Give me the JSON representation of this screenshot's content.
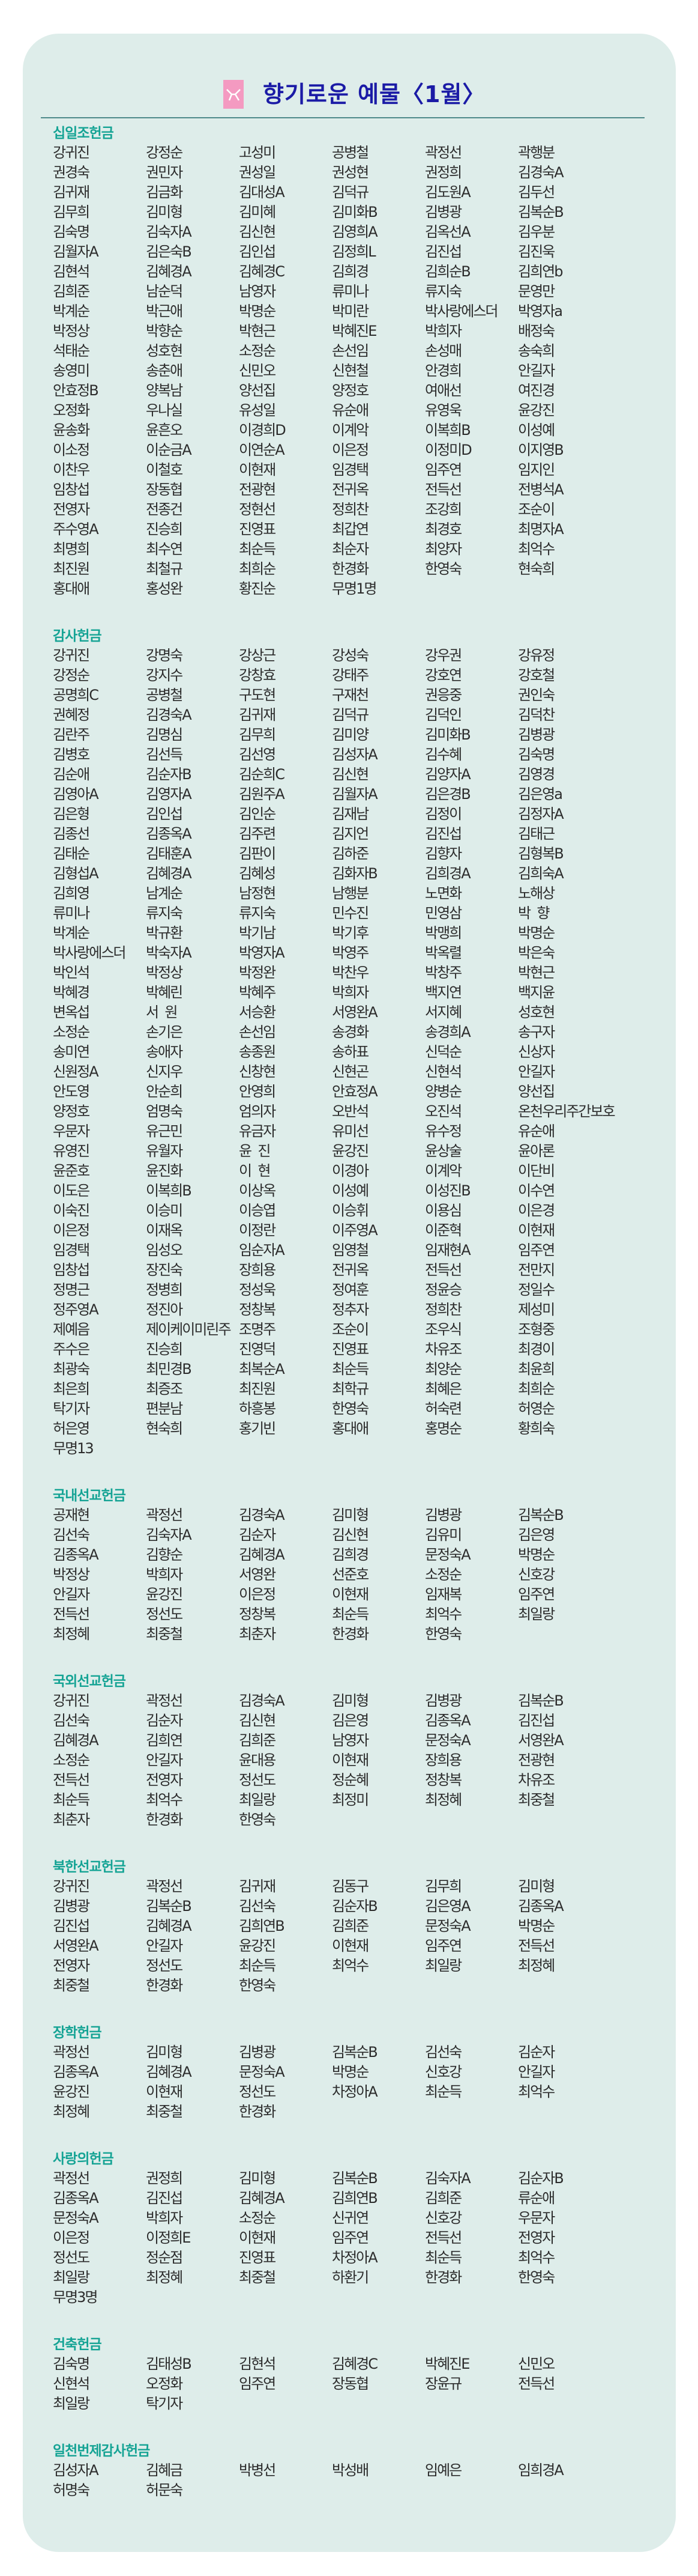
{
  "title": "향기로운 예물〈1월〉",
  "title_icon": "envelope-icon",
  "colors": {
    "title": "#1b1ba6",
    "section_title": "#14a394",
    "card_bg": "#deedea",
    "icon": "#f49ac1"
  },
  "sections": [
    {
      "title": "십일조헌금",
      "names": [
        "강귀진",
        "강정순",
        "고성미",
        "공병철",
        "곽정선",
        "곽행분",
        "권경숙",
        "권민자",
        "권성일",
        "권성현",
        "권정희",
        "김경숙A",
        "김귀재",
        "김금화",
        "김대성A",
        "김덕규",
        "김도원A",
        "김두선",
        "김무희",
        "김미형",
        "김미혜",
        "김미화B",
        "김병광",
        "김복순B",
        "김숙명",
        "김숙자A",
        "김신현",
        "김영희A",
        "김옥선A",
        "김우분",
        "김월자A",
        "김은숙B",
        "김인섭",
        "김정희L",
        "김진섭",
        "김진욱",
        "김현석",
        "김혜경A",
        "김혜경C",
        "김희경",
        "김희순B",
        "김희연b",
        "김희준",
        "남순덕",
        "남영자",
        "류미나",
        "류지숙",
        "문영만",
        "박계순",
        "박근애",
        "박명순",
        "박미란",
        "박사랑에스더",
        "박영자a",
        "박정상",
        "박향순",
        "박현근",
        "박혜진E",
        "박희자",
        "배정숙",
        "석태순",
        "성호현",
        "소정순",
        "손선임",
        "손성매",
        "송숙희",
        "송영미",
        "송춘애",
        "신민오",
        "신현철",
        "안경희",
        "안길자",
        "안효정B",
        "양복남",
        "양선집",
        "양정호",
        "여애선",
        "여진경",
        "오정화",
        "우나실",
        "유성일",
        "유순애",
        "유영욱",
        "윤강진",
        "윤송화",
        "윤흔오",
        "이경희D",
        "이계악",
        "이복희B",
        "이성예",
        "이소정",
        "이순금A",
        "이연순A",
        "이은정",
        "이정미D",
        "이지영B",
        "이찬우",
        "이철호",
        "이현재",
        "임경택",
        "임주연",
        "임지인",
        "임창섭",
        "장동협",
        "전광현",
        "전귀옥",
        "전득선",
        "전병석A",
        "전영자",
        "전종건",
        "정현선",
        "정희찬",
        "조강희",
        "조순이",
        "주수영A",
        "진승희",
        "진영표",
        "최갑연",
        "최경호",
        "최명자A",
        "최명희",
        "최수연",
        "최순득",
        "최순자",
        "최양자",
        "최억수",
        "최진원",
        "최철규",
        "최희순",
        "한경화",
        "한영숙",
        "현숙희",
        "홍대애",
        "홍성완",
        "황진순",
        "무명1명"
      ]
    },
    {
      "title": "감사헌금",
      "names": [
        "강귀진",
        "강명숙",
        "강상근",
        "강성숙",
        "강우권",
        "강유정",
        "강정순",
        "강지수",
        "강창효",
        "강태주",
        "강호연",
        "강호철",
        "공명희C",
        "공병철",
        "구도현",
        "구재천",
        "권응중",
        "권인숙",
        "권혜정",
        "김경숙A",
        "김귀재",
        "김덕규",
        "김덕인",
        "김덕찬",
        "김란주",
        "김명심",
        "김무희",
        "김미양",
        "김미화B",
        "김병광",
        "김병호",
        "김선득",
        "김선영",
        "김성자A",
        "김수혜",
        "김숙명",
        "김순애",
        "김순자B",
        "김순희C",
        "김신현",
        "김양자A",
        "김영경",
        "김영아A",
        "김영자A",
        "김원주A",
        "김월자A",
        "김은경B",
        "김은영a",
        "김은형",
        "김인섭",
        "김인순",
        "김재남",
        "김정이",
        "김정자A",
        "김종선",
        "김종옥A",
        "김주련",
        "김지언",
        "김진섭",
        "김태근",
        "김태순",
        "김태훈A",
        "김판이",
        "김하준",
        "김향자",
        "김형복B",
        "김형섭A",
        "김혜경A",
        "김혜성",
        "김화자B",
        "김희경A",
        "김희숙A",
        "김희영",
        "남계순",
        "남정현",
        "남행분",
        "노면화",
        "노해상",
        "류미나",
        "류지숙",
        "류지숙",
        "민수진",
        "민영삼",
        "박  향",
        "박계순",
        "박규환",
        "박기남",
        "박기후",
        "박맹희",
        "박명순",
        "박사랑에스더",
        "박숙자A",
        "박영자A",
        "박영주",
        "박옥렬",
        "박은숙",
        "박인석",
        "박정상",
        "박정완",
        "박찬우",
        "박창주",
        "박현근",
        "박혜경",
        "박혜린",
        "박혜주",
        "박희자",
        "백지연",
        "백지윤",
        "변옥섭",
        "서  원",
        "서승환",
        "서영완A",
        "서지혜",
        "성호현",
        "소정순",
        "손기은",
        "손선임",
        "송경화",
        "송경희A",
        "송구자",
        "송미연",
        "송애자",
        "송종원",
        "송하표",
        "신덕순",
        "신상자",
        "신원정A",
        "신지우",
        "신창현",
        "신현곤",
        "신현석",
        "안길자",
        "안도영",
        "안순희",
        "안영희",
        "안효정A",
        "양병순",
        "양선집",
        "양정호",
        "엄명숙",
        "엄의자",
        "오반석",
        "오진석",
        "온천우리주간보호",
        "우문자",
        "유근민",
        "유금자",
        "유미선",
        "유수정",
        "유순애",
        "유영진",
        "유월자",
        "윤  진",
        "윤강진",
        "윤상술",
        "윤아론",
        "윤준호",
        "윤진화",
        "이  현",
        "이경아",
        "이계악",
        "이단비",
        "이도은",
        "이복희B",
        "이상옥",
        "이성예",
        "이성진B",
        "이수연",
        "이숙진",
        "이승미",
        "이승엽",
        "이승휘",
        "이용심",
        "이은경",
        "이은정",
        "이재옥",
        "이정란",
        "이주영A",
        "이준혁",
        "이현재",
        "임경택",
        "임성오",
        "임순자A",
        "임영철",
        "임재현A",
        "임주연",
        "임창섭",
        "장진숙",
        "장희용",
        "전귀옥",
        "전득선",
        "전만지",
        "정명근",
        "정병희",
        "정성욱",
        "정여훈",
        "정윤승",
        "정일수",
        "정주영A",
        "정진아",
        "정창복",
        "정추자",
        "정희찬",
        "제성미",
        "제예음",
        "제이케이미린주",
        "조명주",
        "조순이",
        "조우식",
        "조형중",
        "주수은",
        "진승희",
        "진영덕",
        "진영표",
        "차유조",
        "최경이",
        "최광숙",
        "최민경B",
        "최복순A",
        "최순득",
        "최양순",
        "최윤희",
        "최은희",
        "최증조",
        "최진원",
        "최학규",
        "최혜은",
        "최희순",
        "탁기자",
        "편분남",
        "하흥봉",
        "한영숙",
        "허숙련",
        "허영순",
        "허은영",
        "현숙희",
        "홍기빈",
        "홍대애",
        "홍명순",
        "황희숙",
        "무명13"
      ]
    },
    {
      "title": "국내선교헌금",
      "names": [
        "공재현",
        "곽정선",
        "김경숙A",
        "김미형",
        "김병광",
        "김복순B",
        "김선숙",
        "김숙자A",
        "김순자",
        "김신현",
        "김유미",
        "김은영",
        "김종옥A",
        "김향순",
        "김혜경A",
        "김희경",
        "문정숙A",
        "박명순",
        "박정상",
        "박희자",
        "서영완",
        "선준호",
        "소정순",
        "신호강",
        "안길자",
        "윤강진",
        "이은정",
        "이현재",
        "임재복",
        "임주연",
        "전득선",
        "정선도",
        "정창복",
        "최순득",
        "최억수",
        "최일랑",
        "최정혜",
        "최중철",
        "최춘자",
        "한경화",
        "한영숙"
      ]
    },
    {
      "title": "국외선교헌금",
      "names": [
        "강귀진",
        "곽정선",
        "김경숙A",
        "김미형",
        "김병광",
        "김복순B",
        "김선숙",
        "김순자",
        "김신현",
        "김은영",
        "김종옥A",
        "김진섭",
        "김혜경A",
        "김희연",
        "김희준",
        "남영자",
        "문정숙A",
        "서영완A",
        "소정순",
        "안길자",
        "윤대용",
        "이현재",
        "장희용",
        "전광현",
        "전득선",
        "전영자",
        "정선도",
        "정순혜",
        "정창복",
        "차유조",
        "최순득",
        "최억수",
        "최일랑",
        "최정미",
        "최정혜",
        "최중철",
        "최춘자",
        "한경화",
        "한영숙"
      ]
    },
    {
      "title": "북한선교헌금",
      "names": [
        "강귀진",
        "곽정선",
        "김귀재",
        "김동구",
        "김무희",
        "김미형",
        "김병광",
        "김복순B",
        "김선숙",
        "김순자B",
        "김은영A",
        "김종옥A",
        "김진섭",
        "김혜경A",
        "김희연B",
        "김희준",
        "문정숙A",
        "박명순",
        "서영완A",
        "안길자",
        "윤강진",
        "이현재",
        "임주연",
        "전득선",
        "전영자",
        "정선도",
        "최순득",
        "최억수",
        "최일랑",
        "최정혜",
        "최중철",
        "한경화",
        "한영숙"
      ]
    },
    {
      "title": "장학헌금",
      "names": [
        "곽정선",
        "김미형",
        "김병광",
        "김복순B",
        "김선숙",
        "김순자",
        "김종옥A",
        "김혜경A",
        "문정숙A",
        "박명순",
        "신호강",
        "안길자",
        "윤강진",
        "이현재",
        "정선도",
        "차정아A",
        "최순득",
        "최억수",
        "최정혜",
        "최중철",
        "한경화"
      ]
    },
    {
      "title": "사랑의헌금",
      "names": [
        "곽정선",
        "권정희",
        "김미형",
        "김복순B",
        "김숙자A",
        "김순자B",
        "김종옥A",
        "김진섭",
        "김혜경A",
        "김희연B",
        "김희준",
        "류순애",
        "문정숙A",
        "박희자",
        "소정순",
        "신귀연",
        "신호강",
        "우문자",
        "이은정",
        "이정희E",
        "이현재",
        "임주연",
        "전득선",
        "전영자",
        "정선도",
        "정순점",
        "진영표",
        "차정아A",
        "최순득",
        "최억수",
        "최일랑",
        "최정혜",
        "최중철",
        "하환기",
        "한경화",
        "한영숙",
        "무명3명"
      ]
    },
    {
      "title": "건축헌금",
      "names": [
        "김숙명",
        "김태성B",
        "김현석",
        "김혜경C",
        "박혜진E",
        "신민오",
        "신현석",
        "오정화",
        "임주연",
        "장동협",
        "장윤규",
        "전득선",
        "최일랑",
        "탁기자"
      ]
    },
    {
      "title": "일천번제감사헌금",
      "names": [
        "김성자A",
        "김혜금",
        "박병선",
        "박성배",
        "임예은",
        "임희경A",
        "허명숙",
        "허문숙"
      ]
    }
  ]
}
